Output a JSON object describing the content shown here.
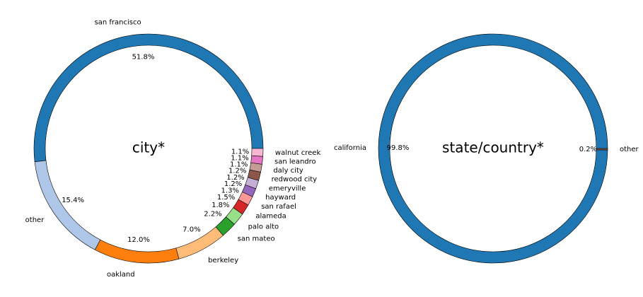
{
  "chart_data": [
    {
      "type": "pie",
      "style": "donut",
      "center_label": "city*",
      "start_angle_deg": 0,
      "direction": "counterclockwise",
      "slices": [
        {
          "label": "san francisco",
          "value": 51.8,
          "pct": "51.8%",
          "color": "#1f77b4"
        },
        {
          "label": "other",
          "value": 15.4,
          "pct": "15.4%",
          "color": "#aec7e8"
        },
        {
          "label": "oakland",
          "value": 12.0,
          "pct": "12.0%",
          "color": "#ff7f0e"
        },
        {
          "label": "berkeley",
          "value": 7.0,
          "pct": "7.0%",
          "color": "#ffbb78"
        },
        {
          "label": "san mateo",
          "value": 2.2,
          "pct": "2.2%",
          "color": "#2ca02c"
        },
        {
          "label": "palo alto",
          "value": 1.8,
          "pct": "1.8%",
          "color": "#98df8a"
        },
        {
          "label": "alameda",
          "value": 1.5,
          "pct": "1.5%",
          "color": "#d62728"
        },
        {
          "label": "san rafael",
          "value": 1.3,
          "pct": "1.3%",
          "color": "#ff9896"
        },
        {
          "label": "hayward",
          "value": 1.2,
          "pct": "1.2%",
          "color": "#9467bd"
        },
        {
          "label": "emeryville",
          "value": 1.2,
          "pct": "1.2%",
          "color": "#c5b0d5"
        },
        {
          "label": "redwood city",
          "value": 1.2,
          "pct": "1.2%",
          "color": "#8c564b"
        },
        {
          "label": "daly city",
          "value": 1.1,
          "pct": "1.1%",
          "color": "#c49c94"
        },
        {
          "label": "san leandro",
          "value": 1.1,
          "pct": "1.1%",
          "color": "#e377c2"
        },
        {
          "label": "walnut creek",
          "value": 1.1,
          "pct": "1.1%",
          "color": "#f7b6d2"
        }
      ]
    },
    {
      "type": "pie",
      "style": "donut",
      "center_label": "state/country*",
      "start_angle_deg": 0,
      "direction": "counterclockwise",
      "slices": [
        {
          "label": "california",
          "value": 99.8,
          "pct": "99.8%",
          "color": "#1f77b4"
        },
        {
          "label": "other",
          "value": 0.2,
          "pct": "0.2%",
          "color": "#8c564b"
        }
      ]
    }
  ]
}
